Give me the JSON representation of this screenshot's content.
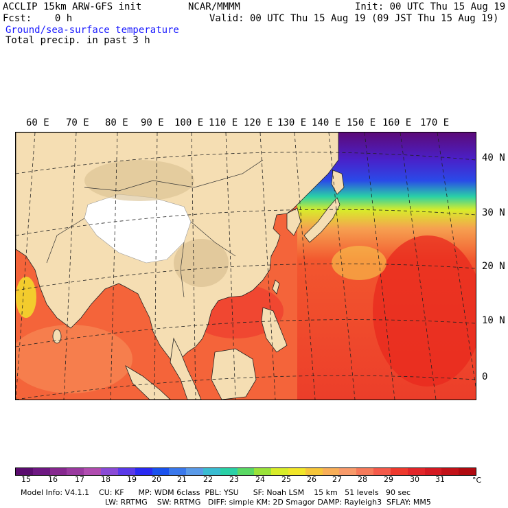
{
  "header": {
    "model_line": "ACCLIP 15km ARW-GFS init",
    "org": "NCAR/MMMM",
    "init": "Init: 00 UTC Thu 15 Aug 19",
    "fcst": "Fcst:    0 h",
    "valid": "Valid: 00 UTC Thu 15 Aug 19 (09 JST Thu 15 Aug 19)",
    "field1": "Ground/sea-surface temperature",
    "field2": "Total precip. in past 3 h"
  },
  "lon_labels": [
    "60 E",
    "70 E",
    "80 E",
    "90 E",
    "100 E",
    "110 E",
    "120 E",
    "130 E",
    "140 E",
    "150 E",
    "160 E",
    "170 E"
  ],
  "lat_labels": [
    "40 N",
    "30 N",
    "20 N",
    "10 N",
    "0"
  ],
  "colorbar": {
    "ticks": [
      "15",
      "16",
      "17",
      "18",
      "19",
      "20",
      "21",
      "22",
      "23",
      "24",
      "25",
      "26",
      "27",
      "28",
      "29",
      "30",
      "31"
    ],
    "unit": "°C",
    "colors": [
      "#5a0c6e",
      "#6e1882",
      "#86288f",
      "#9a3aa0",
      "#b04cb0",
      "#8a4ad6",
      "#5a3ae8",
      "#2a2af2",
      "#1a52ee",
      "#3a78ec",
      "#5a9ae8",
      "#3abcd2",
      "#2ad0a6",
      "#5ad864",
      "#9ae23a",
      "#d8ec2a",
      "#f2e62a",
      "#f6c63a",
      "#f8ae58",
      "#f89a6a",
      "#f67a5a",
      "#f45a4a",
      "#ee3a2e",
      "#e2262a",
      "#d41a22",
      "#c21218",
      "#b00a10"
    ]
  },
  "info": {
    "line1": "Model Info: V4.1.1    CU: KF      MP: WDM 6class  PBL: YSU      SF: Noah LSM    15 km   51 levels   90 sec",
    "line2": "LW: RRTMG    SW: RRTMG   DIFF: simple KM: 2D Smagor DAMP: Rayleigh3  SFLAY: MM5"
  },
  "colors": {
    "land": "#f5deb3",
    "plateau": "#ffffff",
    "warm_sea": "#f2562e",
    "cold_sea": "#5c0a78"
  }
}
